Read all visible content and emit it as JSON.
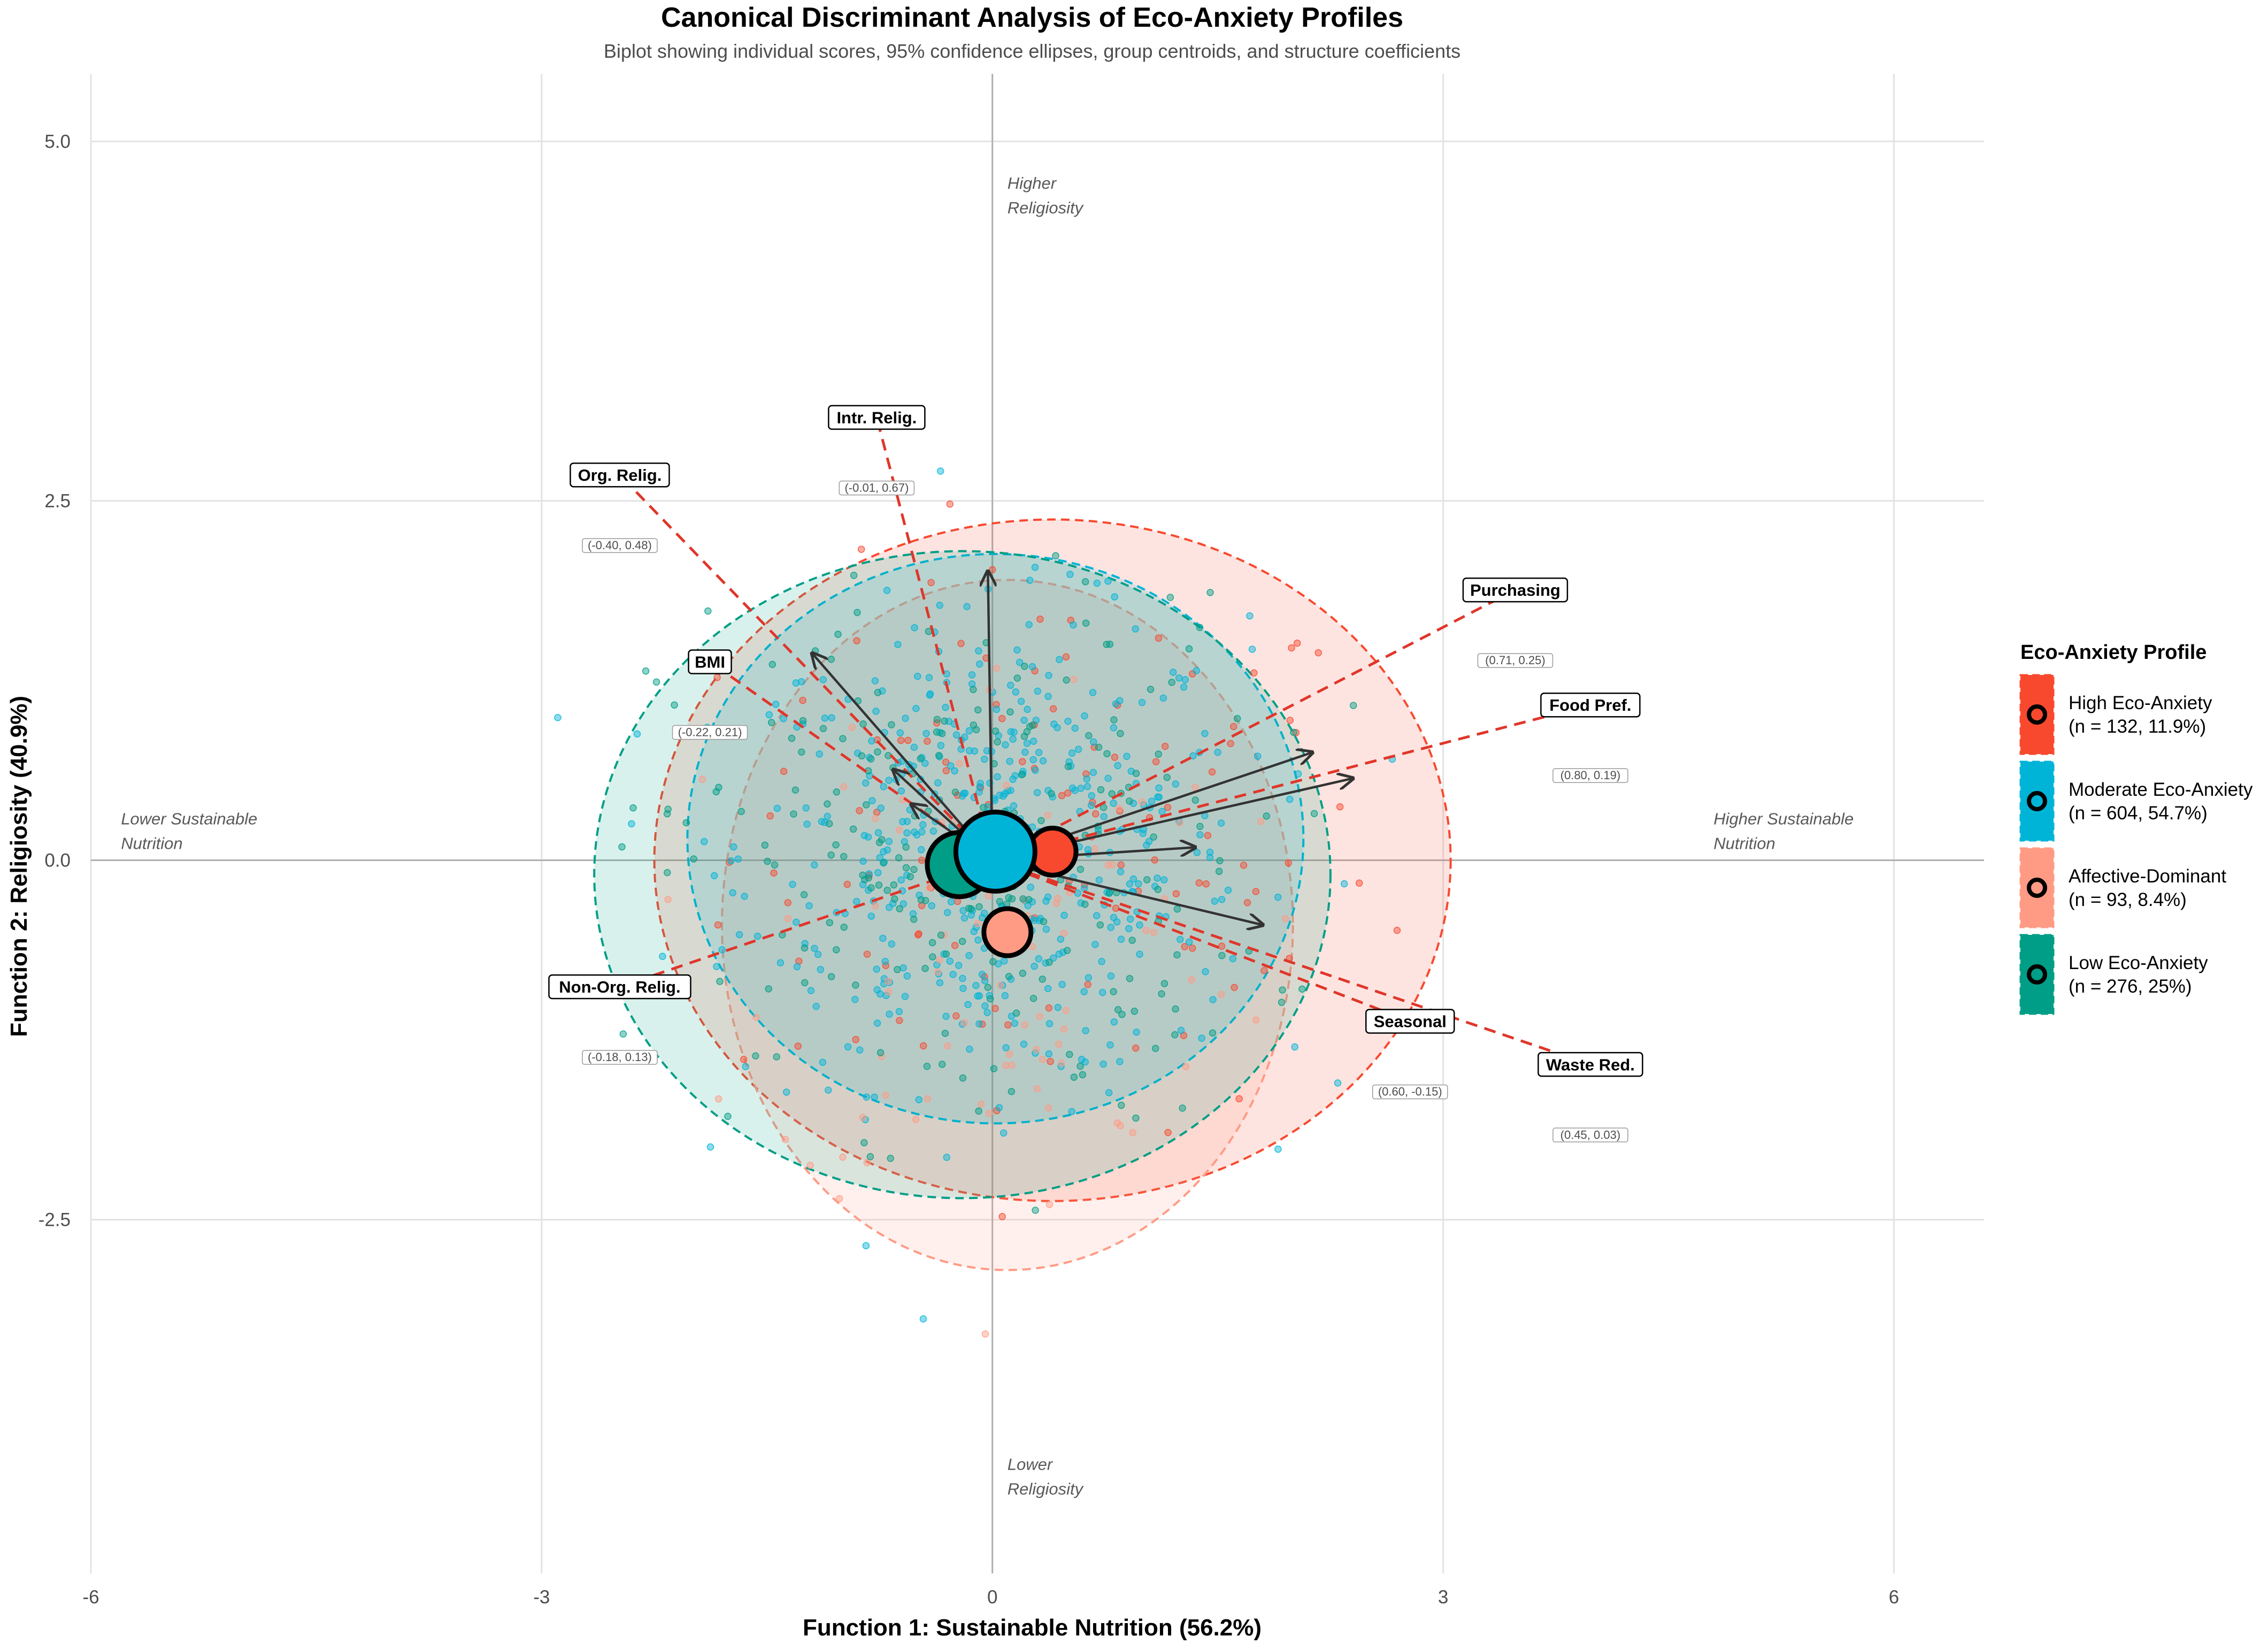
{
  "chart_data": {
    "type": "scatter",
    "title": "Canonical Discriminant Analysis of Eco-Anxiety Profiles",
    "subtitle": "Biplot showing individual scores, 95% confidence ellipses, group centroids, and structure coefficients",
    "xlabel": "Function 1: Sustainable Nutrition (56.2%)",
    "ylabel": "Function 2: Religiosity (40.9%)",
    "xlim": [
      -6.0,
      6.6
    ],
    "ylim": [
      -4.96,
      5.47
    ],
    "x_ticks": [
      -6,
      -3,
      0,
      3,
      6
    ],
    "x_tick_labels": [
      "-6",
      "-3",
      "0",
      "3",
      "6"
    ],
    "y_ticks": [
      -2.5,
      0.0,
      2.5,
      5.0
    ],
    "y_tick_labels": [
      "-2.5",
      "0.0",
      "2.5",
      "5.0"
    ],
    "grid": true,
    "direction_labels": [
      {
        "key": "up",
        "lines": [
          "Higher",
          "Religiosity"
        ]
      },
      {
        "key": "down",
        "lines": [
          "Lower",
          "Religiosity"
        ]
      },
      {
        "key": "left",
        "lines": [
          "Lower Sustainable",
          "Nutrition"
        ]
      },
      {
        "key": "right",
        "lines": [
          "Higher Sustainable",
          "Nutrition"
        ]
      }
    ],
    "legend": {
      "title": "Eco-Anxiety Profile",
      "position": "right",
      "entries": [
        {
          "line1": "High Eco-Anxiety",
          "line2": "(n = 132, 11.9%)",
          "color": "#F8492F"
        },
        {
          "line1": "Moderate Eco-Anxiety",
          "line2": "(n = 604, 54.7%)",
          "color": "#00B4D8"
        },
        {
          "line1": "Affective-Dominant",
          "line2": "(n = 93, 8.4%)",
          "color": "#FF9B85"
        },
        {
          "line1": "Low Eco-Anxiety",
          "line2": "(n = 276, 25%)",
          "color": "#009E86"
        }
      ]
    },
    "groups": [
      {
        "name": "High Eco-Anxiety",
        "n": 132,
        "color": "#F8492F",
        "centroid": [
          0.4,
          0.06
        ],
        "ellipse": {
          "cx": 0.4,
          "cy": 0.0,
          "rx": 2.65,
          "ry": 2.37
        }
      },
      {
        "name": "Moderate Eco-Anxiety",
        "n": 604,
        "color": "#00B4D8",
        "centroid": [
          0.02,
          0.06
        ],
        "ellipse": {
          "cx": 0.02,
          "cy": 0.15,
          "rx": 2.05,
          "ry": 1.98
        }
      },
      {
        "name": "Affective-Dominant",
        "n": 93,
        "color": "#FF9B85",
        "centroid": [
          0.1,
          -0.5
        ],
        "ellipse": {
          "cx": 0.1,
          "cy": -0.45,
          "rx": 1.9,
          "ry": 2.4
        }
      },
      {
        "name": "Low Eco-Anxiety",
        "n": 276,
        "color": "#009E86",
        "centroid": [
          -0.22,
          -0.03
        ],
        "ellipse": {
          "cx": -0.2,
          "cy": -0.1,
          "rx": 2.45,
          "ry": 2.25
        }
      }
    ],
    "structure_coefficients": [
      {
        "var": "Intr. Relig.",
        "coef": "(-0.01, 0.67)",
        "x": -0.01,
        "y": 0.67,
        "ext_x": -0.77,
        "ext_y": 3.08
      },
      {
        "var": "Org. Relig.",
        "coef": "(-0.40, 0.48)",
        "x": -0.4,
        "y": 0.48,
        "ext_x": -2.48,
        "ext_y": 2.68
      },
      {
        "var": "BMI",
        "coef": "(-0.22, 0.21)",
        "x": -0.22,
        "y": 0.21,
        "ext_x": -1.88,
        "ext_y": 1.38
      },
      {
        "var": "Non-Org. Relig.",
        "coef": "(-0.18, 0.13)",
        "x": -0.18,
        "y": 0.13,
        "ext_x": -2.48,
        "ext_y": -0.88
      },
      {
        "var": "Purchasing",
        "coef": "(0.71, 0.25)",
        "x": 0.71,
        "y": 0.25,
        "ext_x": 3.48,
        "ext_y": 1.88
      },
      {
        "var": "Food Pref.",
        "coef": "(0.80, 0.19)",
        "x": 0.8,
        "y": 0.19,
        "ext_x": 3.98,
        "ext_y": 1.08
      },
      {
        "var": "Seasonal",
        "coef": "(0.60, -0.15)",
        "x": 0.6,
        "y": -0.15,
        "ext_x": 2.78,
        "ext_y": -1.12
      },
      {
        "var": "Waste Red.",
        "coef": "(0.45, 0.03)",
        "x": 0.45,
        "y": 0.03,
        "ext_x": 3.98,
        "ext_y": -1.42
      }
    ]
  }
}
